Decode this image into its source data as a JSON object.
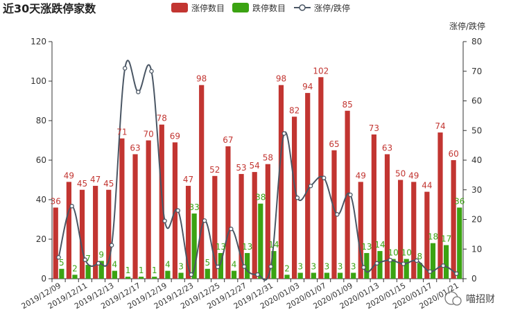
{
  "chart_data": {
    "type": "bar",
    "title": "近30天涨跌停家数",
    "categories": [
      "2019/12/09",
      "2019/12/10",
      "2019/12/11",
      "2019/12/12",
      "2019/12/13",
      "2019/12/16",
      "2019/12/17",
      "2019/12/18",
      "2019/12/19",
      "2019/12/20",
      "2019/12/23",
      "2019/12/24",
      "2019/12/25",
      "2019/12/26",
      "2019/12/27",
      "2019/12/30",
      "2019/12/31",
      "2020/01/02",
      "2020/01/03",
      "2020/01/06",
      "2020/01/07",
      "2020/01/08",
      "2020/01/09",
      "2020/01/10",
      "2020/01/13",
      "2020/01/14",
      "2020/01/15",
      "2020/01/16",
      "2020/01/17",
      "2020/01/20",
      "2020/01/21"
    ],
    "x_tick_labels": [
      "2019/12/09",
      "2019/12/11",
      "2019/12/13",
      "2019/12/17",
      "2019/12/19",
      "2019/12/23",
      "2019/12/25",
      "2019/12/27",
      "2019/12/31",
      "2020/01/03",
      "2020/01/07",
      "2020/01/09",
      "2020/01/13",
      "2020/01/15",
      "2020/01/17",
      "2020/01/21"
    ],
    "series": [
      {
        "name": "涨停数目",
        "type": "bar",
        "color": "#c23531",
        "axis": "left",
        "values": [
          36,
          49,
          45,
          47,
          45,
          71,
          63,
          70,
          78,
          69,
          47,
          98,
          52,
          67,
          53,
          54,
          58,
          98,
          82,
          94,
          102,
          65,
          85,
          49,
          73,
          63,
          50,
          49,
          44,
          74,
          60
        ]
      },
      {
        "name": "跌停数目",
        "type": "bar",
        "color": "#3ba312",
        "axis": "left",
        "values": [
          5,
          2,
          7,
          9,
          4,
          1,
          1,
          1,
          4,
          3,
          33,
          5,
          13,
          4,
          13,
          38,
          14,
          2,
          3,
          3,
          3,
          3,
          3,
          13,
          14,
          10,
          10,
          8,
          18,
          17,
          36
        ]
      },
      {
        "name": "涨停/跌停",
        "type": "line",
        "color": "#4a5664",
        "axis": "right",
        "values": [
          7.2,
          24.5,
          6.4,
          5.2,
          11.3,
          71,
          63,
          70,
          19.5,
          23,
          1.4,
          19.6,
          4,
          16.8,
          4.1,
          1.4,
          4.1,
          49,
          27.3,
          31.3,
          34,
          21.7,
          28.3,
          3.8,
          5.2,
          6.3,
          5,
          6.1,
          2.4,
          4.4,
          1.7
        ]
      }
    ],
    "y_left": {
      "min": 0,
      "max": 120,
      "ticks": [
        0,
        20,
        40,
        60,
        80,
        100,
        120
      ]
    },
    "y_right": {
      "name": "涨停/跌停",
      "min": 0,
      "max": 80,
      "ticks": [
        0,
        10,
        20,
        30,
        40,
        50,
        60,
        70,
        80
      ]
    },
    "legend_position": "top-center",
    "grid": false
  },
  "watermark": "喵招财"
}
